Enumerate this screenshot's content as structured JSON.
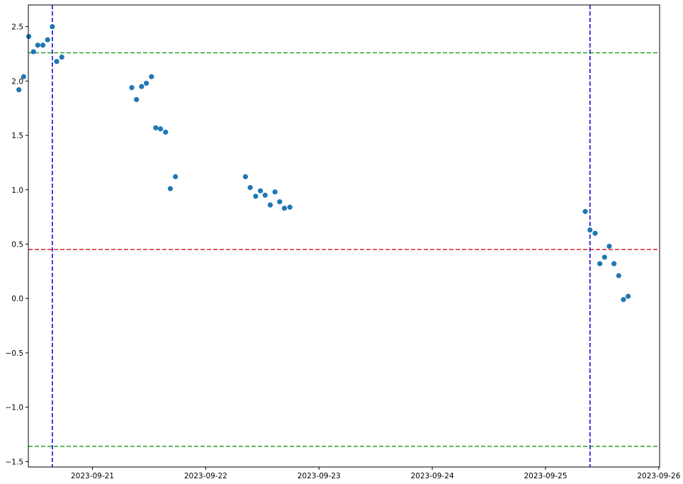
{
  "chart_data": {
    "type": "scatter",
    "title": "",
    "xlabel": "",
    "ylabel": "",
    "x_axis": {
      "kind": "date",
      "range": [
        "2023-09-20 10:25",
        "2023-09-26 00:10"
      ],
      "ticks": [
        "2023-09-21",
        "2023-09-22",
        "2023-09-23",
        "2023-09-24",
        "2023-09-25",
        "2023-09-26"
      ],
      "tick_labels": [
        "2023-09-21",
        "2023-09-22",
        "2023-09-23",
        "2023-09-24",
        "2023-09-25",
        "2023-09-26"
      ]
    },
    "y_axis": {
      "range": [
        -1.55,
        2.7
      ],
      "ticks": [
        -1.5,
        -1.0,
        -0.5,
        0.0,
        0.5,
        1.0,
        1.5,
        2.0,
        2.5
      ],
      "tick_labels": [
        "−1.5",
        "−1.0",
        "−0.5",
        "0.0",
        "0.5",
        "1.0",
        "1.5",
        "2.0",
        "2.5"
      ]
    },
    "grid": false,
    "legend": "none",
    "marker_color": "#1f77b4",
    "points": [
      {
        "x": "2023-09-20 08:25",
        "y": 1.92
      },
      {
        "x": "2023-09-20 09:25",
        "y": 2.04
      },
      {
        "x": "2023-09-20 10:30",
        "y": 2.41
      },
      {
        "x": "2023-09-20 11:30",
        "y": 2.27
      },
      {
        "x": "2023-09-20 12:25",
        "y": 2.33
      },
      {
        "x": "2023-09-20 13:30",
        "y": 2.33
      },
      {
        "x": "2023-09-20 14:30",
        "y": 2.38
      },
      {
        "x": "2023-09-20 15:30",
        "y": 2.5
      },
      {
        "x": "2023-09-20 16:25",
        "y": 2.18
      },
      {
        "x": "2023-09-20 17:30",
        "y": 2.22
      },
      {
        "x": "2023-09-21 08:20",
        "y": 1.94
      },
      {
        "x": "2023-09-21 09:20",
        "y": 1.83
      },
      {
        "x": "2023-09-21 10:25",
        "y": 1.95
      },
      {
        "x": "2023-09-21 11:25",
        "y": 1.98
      },
      {
        "x": "2023-09-21 12:30",
        "y": 2.04
      },
      {
        "x": "2023-09-21 13:25",
        "y": 1.57
      },
      {
        "x": "2023-09-21 14:25",
        "y": 1.56
      },
      {
        "x": "2023-09-21 15:30",
        "y": 1.53
      },
      {
        "x": "2023-09-21 16:30",
        "y": 1.01
      },
      {
        "x": "2023-09-21 17:35",
        "y": 1.12
      },
      {
        "x": "2023-09-22 08:25",
        "y": 1.12
      },
      {
        "x": "2023-09-22 09:25",
        "y": 1.02
      },
      {
        "x": "2023-09-22 10:35",
        "y": 0.94
      },
      {
        "x": "2023-09-22 11:35",
        "y": 0.99
      },
      {
        "x": "2023-09-22 12:35",
        "y": 0.95
      },
      {
        "x": "2023-09-22 13:40",
        "y": 0.86
      },
      {
        "x": "2023-09-22 14:40",
        "y": 0.98
      },
      {
        "x": "2023-09-22 15:40",
        "y": 0.89
      },
      {
        "x": "2023-09-22 16:40",
        "y": 0.83
      },
      {
        "x": "2023-09-22 17:50",
        "y": 0.84
      },
      {
        "x": "2023-09-25 08:25",
        "y": 0.8
      },
      {
        "x": "2023-09-25 09:25",
        "y": 0.63
      },
      {
        "x": "2023-09-25 10:30",
        "y": 0.6
      },
      {
        "x": "2023-09-25 11:30",
        "y": 0.32
      },
      {
        "x": "2023-09-25 12:30",
        "y": 0.38
      },
      {
        "x": "2023-09-25 13:30",
        "y": 0.48
      },
      {
        "x": "2023-09-25 14:30",
        "y": 0.32
      },
      {
        "x": "2023-09-25 15:30",
        "y": 0.21
      },
      {
        "x": "2023-09-25 16:30",
        "y": -0.01
      },
      {
        "x": "2023-09-25 17:30",
        "y": 0.02
      }
    ],
    "hlines": [
      {
        "y": 2.26,
        "color": "#2ca02c",
        "style": "dashed"
      },
      {
        "y": 0.45,
        "color": "#d62728",
        "style": "dashed"
      },
      {
        "y": -1.36,
        "color": "#2ca02c",
        "style": "dashed"
      }
    ],
    "vlines": [
      {
        "x": "2023-09-20 15:30",
        "color": "#0000cc",
        "style": "dashed"
      },
      {
        "x": "2023-09-25 09:25",
        "color": "#0000cc",
        "style": "dashed"
      }
    ]
  }
}
